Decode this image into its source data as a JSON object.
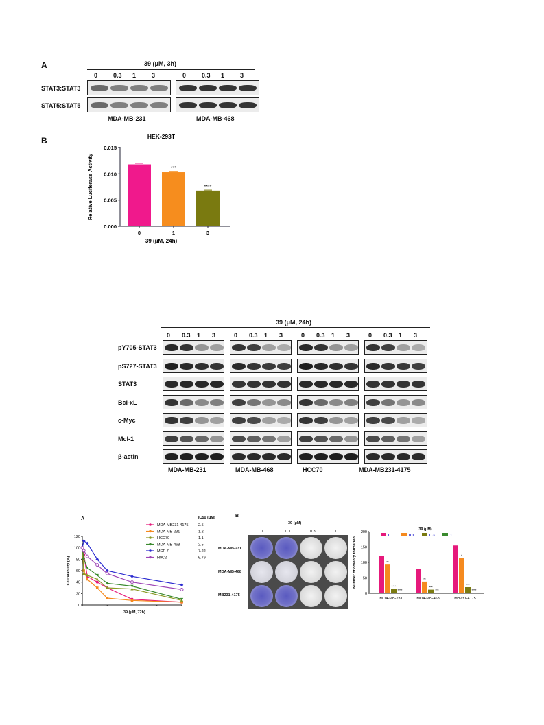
{
  "topBlot": {
    "panel": "A",
    "treatment": "39 (μM, 3h)",
    "doses": [
      "0",
      "0.3",
      "1",
      "3"
    ],
    "rows": [
      "STAT3:STAT3",
      "STAT5:STAT5"
    ],
    "cells": [
      "MDA-MB-231",
      "MDA-MB-468"
    ]
  },
  "luc": {
    "panel": "B",
    "chart_data": {
      "type": "bar",
      "title": "HEK-293T",
      "xlabel": "39 (μM, 24h)",
      "ylabel": "Relative Luciferase Activity",
      "categories": [
        "0",
        "1",
        "3"
      ],
      "values": [
        0.0118,
        0.0103,
        0.0068
      ],
      "errors": [
        0.0002,
        0.0001,
        0.0001
      ],
      "significance": [
        "",
        "***",
        "****"
      ],
      "colors": [
        "#f0198c",
        "#f68d1e",
        "#7a7a10"
      ],
      "ylim": [
        0,
        0.015
      ],
      "yticks": [
        "0.000",
        "0.005",
        "0.010",
        "0.015"
      ]
    }
  },
  "bigBlot": {
    "treatment": "39 (μM, 24h)",
    "doses": [
      "0",
      "0.3",
      "1",
      "3"
    ],
    "rows": [
      "pY705-STAT3",
      "pS727-STAT3",
      "STAT3",
      "Bcl-xL",
      "c-Myc",
      "Mcl-1",
      "β-actin"
    ],
    "cells": [
      "MDA-MB-231",
      "MDA-MB-468",
      "HCC70",
      "MDA-MB231-4175"
    ]
  },
  "viability": {
    "panel": "A",
    "chart_data": {
      "type": "line",
      "xlabel": "39 (μM, 72h)",
      "ylabel": "Cell Viability (%)",
      "x": [
        0,
        0.3,
        1,
        3,
        5,
        10,
        20
      ],
      "xlim": [
        0,
        20
      ],
      "xticks": [
        "0",
        "5",
        "10",
        "15",
        "20"
      ],
      "ylim": [
        0,
        120
      ],
      "yticks": [
        "0",
        "20",
        "40",
        "60",
        "80",
        "100",
        "120"
      ],
      "ic50_header": "IC50 (μM)",
      "series": [
        {
          "name": "MDA-MB231-4175",
          "ic50": "2.5",
          "color": "#e6197b",
          "marker": "circle",
          "values": [
            100,
            88,
            50,
            40,
            30,
            10,
            5
          ]
        },
        {
          "name": "MDA-MB-231",
          "ic50": "1.2",
          "color": "#f58a1f",
          "marker": "square",
          "values": [
            100,
            60,
            45,
            30,
            12,
            8,
            5
          ]
        },
        {
          "name": "HCC70",
          "ic50": "1.1",
          "color": "#8b9a25",
          "marker": "triangle",
          "values": [
            100,
            55,
            52,
            45,
            30,
            28,
            8
          ]
        },
        {
          "name": "MDA-MB-468",
          "ic50": "2.5",
          "color": "#3a8a2e",
          "marker": "triangle-down",
          "values": [
            100,
            80,
            65,
            52,
            38,
            33,
            10
          ]
        },
        {
          "name": "MCF-7",
          "ic50": "7.22",
          "color": "#2a2ad0",
          "marker": "diamond",
          "values": [
            100,
            112,
            108,
            80,
            60,
            50,
            35
          ]
        },
        {
          "name": "H9C2",
          "ic50": "6.79",
          "color": "#9d44b5",
          "marker": "circle-open",
          "values": [
            100,
            95,
            85,
            70,
            55,
            40,
            27
          ]
        }
      ]
    }
  },
  "colony": {
    "panel": "B",
    "treatment": "39 (μM)",
    "doses": [
      "0",
      "0.1",
      "0.3",
      "1"
    ],
    "rows": [
      "MDA-MB-231",
      "MDA-MB-468",
      "MB231-4175"
    ],
    "chart_data": {
      "type": "bar",
      "title": "39 (μM)",
      "ylabel": "Number of colonry formation",
      "categories": [
        "MDA-MB-231",
        "MDA-MB-468",
        "MB231-4175"
      ],
      "ylim": [
        0,
        200
      ],
      "yticks": [
        "0",
        "50",
        "100",
        "150",
        "200"
      ],
      "series": [
        {
          "name": "0",
          "color": "#e6197b",
          "values": [
            120,
            78,
            155
          ],
          "sig": [
            "",
            "",
            ""
          ]
        },
        {
          "name": "0.1",
          "color": "#f58a1f",
          "values": [
            93,
            38,
            115
          ],
          "sig": [
            "**",
            "**",
            "*"
          ]
        },
        {
          "name": "0.3",
          "color": "#7a7a10",
          "values": [
            15,
            12,
            20
          ],
          "sig": [
            "****",
            "***",
            "***"
          ]
        },
        {
          "name": "1",
          "color": "#3a8a2e",
          "values": [
            2,
            2,
            2
          ],
          "sig": [
            "****",
            "***",
            "****"
          ]
        }
      ]
    }
  }
}
